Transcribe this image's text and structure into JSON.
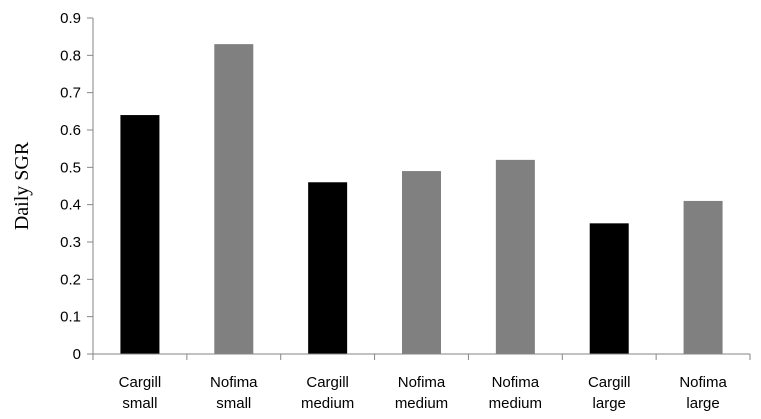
{
  "chart_data": {
    "type": "bar",
    "title": "",
    "xlabel": "",
    "ylabel": "Daily SGR",
    "ylim": [
      0,
      0.9
    ],
    "yticks": [
      "0",
      "0.1",
      "0.2",
      "0.3",
      "0.4",
      "0.5",
      "0.6",
      "0.7",
      "0.8",
      "0.9"
    ],
    "grid": false,
    "legend": "none",
    "categories": [
      [
        "Cargill",
        "small"
      ],
      [
        "Nofima",
        "small"
      ],
      [
        "Cargill",
        "medium"
      ],
      [
        "Nofima",
        "medium"
      ],
      [
        "Nofima",
        "medium"
      ],
      [
        "Cargill",
        "large"
      ],
      [
        "Nofima",
        "large"
      ]
    ],
    "values": [
      0.64,
      0.83,
      0.46,
      0.49,
      0.52,
      0.35,
      0.41
    ],
    "bar_colors": [
      "#000000",
      "#808080",
      "#000000",
      "#808080",
      "#808080",
      "#000000",
      "#808080"
    ],
    "axis_color": "#868686"
  }
}
